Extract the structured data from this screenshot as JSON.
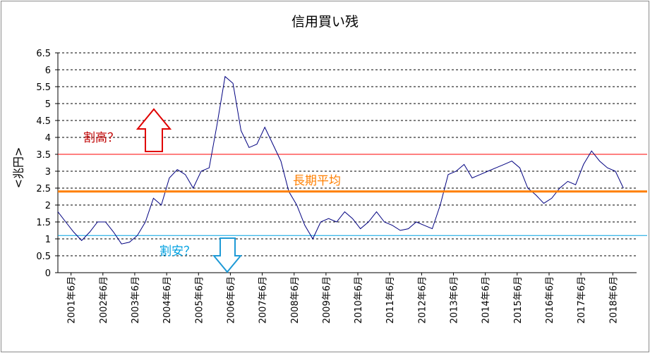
{
  "chart_data": {
    "type": "line",
    "title": "信用買い残",
    "ylabel": "<兆円>",
    "ylim": [
      0,
      6.5
    ],
    "y_ticks": [
      "0",
      "0.5",
      "1",
      "1.5",
      "2",
      "2.5",
      "3",
      "3.5",
      "4",
      "4.5",
      "5",
      "5.5",
      "6",
      "6.5"
    ],
    "x_ticks": [
      "2001年6月",
      "2002年6月",
      "2003年6月",
      "2004年6月",
      "2005年6月",
      "2006年6月",
      "2007年6月",
      "2008年6月",
      "2009年6月",
      "2010年6月",
      "2011年6月",
      "2012年6月",
      "2013年6月",
      "2014年6月",
      "2015年6月",
      "2016年6月",
      "2017年6月",
      "2018年6月"
    ],
    "grid": "horizontal dashed",
    "series": [
      {
        "color": "#000080",
        "x": [
          "2001-01",
          "2001-04",
          "2001-07",
          "2001-10",
          "2002-01",
          "2002-04",
          "2002-07",
          "2002-10",
          "2003-01",
          "2003-04",
          "2003-07",
          "2003-10",
          "2004-01",
          "2004-04",
          "2004-07",
          "2004-10",
          "2005-01",
          "2005-04",
          "2005-07",
          "2005-10",
          "2006-01",
          "2006-04",
          "2006-07",
          "2006-10",
          "2007-01",
          "2007-04",
          "2007-07",
          "2007-10",
          "2008-01",
          "2008-04",
          "2008-07",
          "2008-10",
          "2009-01",
          "2009-04",
          "2009-07",
          "2009-10",
          "2010-01",
          "2010-04",
          "2010-07",
          "2010-10",
          "2011-01",
          "2011-04",
          "2011-07",
          "2011-10",
          "2012-01",
          "2012-04",
          "2012-07",
          "2012-10",
          "2013-01",
          "2013-04",
          "2013-07",
          "2013-10",
          "2014-01",
          "2014-04",
          "2014-07",
          "2014-10",
          "2015-01",
          "2015-04",
          "2015-07",
          "2015-10",
          "2016-01",
          "2016-04",
          "2016-07",
          "2016-10",
          "2017-01",
          "2017-04",
          "2017-07",
          "2017-10",
          "2018-01",
          "2018-04",
          "2018-07",
          "2018-10"
        ],
        "values": [
          1.8,
          1.5,
          1.2,
          0.95,
          1.2,
          1.5,
          1.5,
          1.2,
          0.85,
          0.9,
          1.1,
          1.5,
          2.2,
          2.0,
          2.8,
          3.05,
          2.9,
          2.5,
          3.0,
          3.1,
          4.4,
          5.8,
          5.6,
          4.2,
          3.7,
          3.8,
          4.3,
          3.8,
          3.3,
          2.4,
          2.0,
          1.4,
          1.0,
          1.5,
          1.6,
          1.5,
          1.8,
          1.6,
          1.3,
          1.5,
          1.8,
          1.5,
          1.4,
          1.25,
          1.3,
          1.5,
          1.4,
          1.3,
          2.0,
          2.9,
          3.0,
          3.2,
          2.8,
          2.9,
          3.0,
          3.1,
          3.2,
          3.3,
          3.1,
          2.5,
          2.3,
          2.05,
          2.2,
          2.5,
          2.7,
          2.6,
          3.2,
          3.6,
          3.3,
          3.1,
          3.0,
          2.5
        ]
      }
    ],
    "reference_lines": [
      {
        "label": "長期平均",
        "value": 2.4,
        "color": "#ff7f00"
      },
      {
        "label": "割高？",
        "value": 3.5,
        "color": "#ff0000"
      },
      {
        "label": "割安？",
        "value": 1.1,
        "color": "#00a0e0"
      }
    ]
  }
}
